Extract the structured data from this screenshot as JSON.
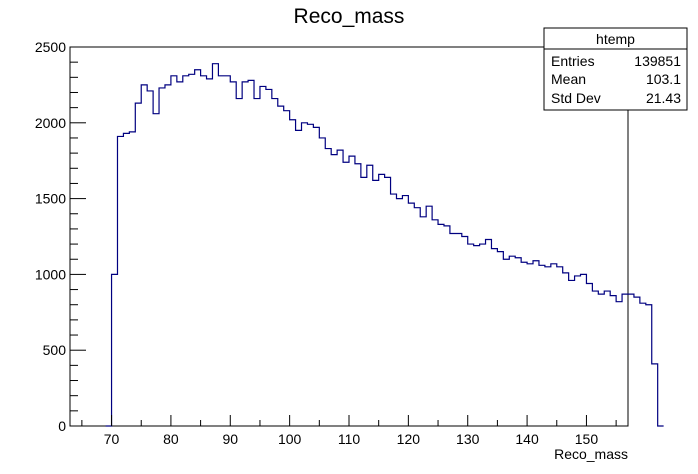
{
  "chart_data": {
    "type": "histogram",
    "title": "Reco_mass",
    "xlabel": "Reco_mass",
    "ylabel": "",
    "xlim": [
      63,
      157
    ],
    "ylim": [
      0,
      2500
    ],
    "x_ticks": [
      70,
      80,
      90,
      100,
      110,
      120,
      130,
      140,
      150
    ],
    "y_ticks": [
      0,
      500,
      1000,
      1500,
      2000,
      2500
    ],
    "grid": false,
    "line_color": "#000080",
    "bin_width": 1,
    "bins_start": 69,
    "counts": [
      0,
      1000,
      1910,
      1930,
      1940,
      2130,
      2250,
      2210,
      2060,
      2230,
      2250,
      2310,
      2270,
      2310,
      2320,
      2350,
      2310,
      2290,
      2390,
      2310,
      2310,
      2270,
      2160,
      2270,
      2280,
      2160,
      2240,
      2220,
      2160,
      2110,
      2080,
      2020,
      1950,
      2000,
      1990,
      1970,
      1900,
      1830,
      1790,
      1820,
      1740,
      1780,
      1730,
      1640,
      1720,
      1620,
      1660,
      1640,
      1530,
      1500,
      1520,
      1470,
      1440,
      1380,
      1450,
      1360,
      1330,
      1320,
      1270,
      1270,
      1250,
      1200,
      1190,
      1200,
      1230,
      1170,
      1150,
      1100,
      1120,
      1110,
      1080,
      1070,
      1090,
      1060,
      1050,
      1070,
      1050,
      1010,
      960,
      990,
      1000,
      940,
      890,
      870,
      890,
      860,
      820,
      870,
      870,
      850,
      810,
      800,
      410,
      0
    ],
    "stats": {
      "name": "htemp",
      "rows": [
        {
          "label": "Entries",
          "value": "139851"
        },
        {
          "label": "Mean",
          "value": "103.1"
        },
        {
          "label": "Std Dev",
          "value": "21.43"
        }
      ]
    }
  }
}
